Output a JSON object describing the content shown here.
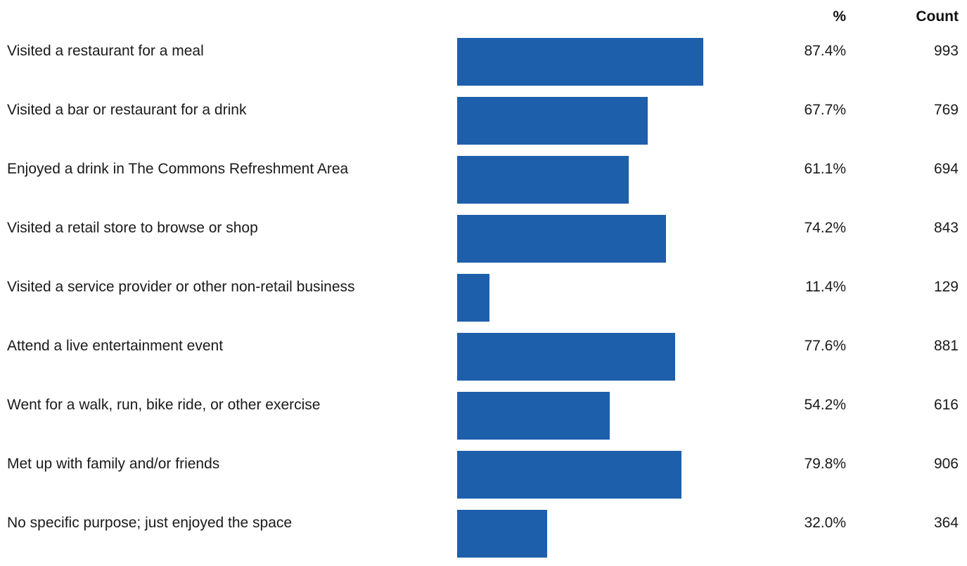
{
  "header": {
    "percent_label": "%",
    "count_label": "Count"
  },
  "colors": {
    "bar": "#1e5fac"
  },
  "chart_data": {
    "type": "bar",
    "orientation": "horizontal",
    "xlim": [
      0,
      100
    ],
    "categories": [
      "Visited a restaurant for a meal",
      "Visited a bar or restaurant for a drink",
      "Enjoyed a drink in The Commons Refreshment Area",
      "Visited a retail store to browse or shop",
      "Visited a service provider or other non-retail business",
      "Attend a live entertainment event",
      "Went for a walk, run, bike ride, or other exercise",
      "Met up with family and/or friends",
      "No specific purpose; just enjoyed the space"
    ],
    "values": [
      87.4,
      67.7,
      61.1,
      74.2,
      11.4,
      77.6,
      54.2,
      79.8,
      32.0
    ],
    "percent_labels": [
      "87.4%",
      "67.7%",
      "61.1%",
      "74.2%",
      "11.4%",
      "77.6%",
      "54.2%",
      "79.8%",
      "32.0%"
    ],
    "counts": [
      "993",
      "769",
      "694",
      "843",
      "129",
      "881",
      "616",
      "906",
      "364"
    ]
  }
}
